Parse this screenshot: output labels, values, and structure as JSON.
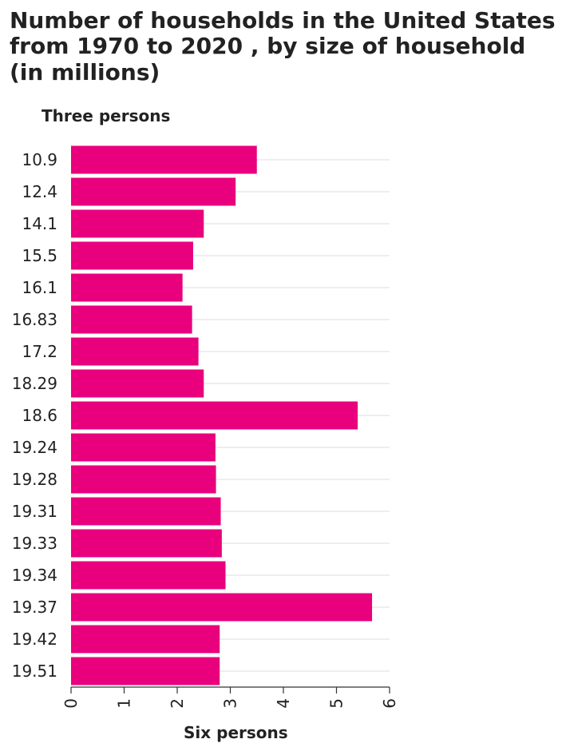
{
  "chart_data": {
    "type": "bar",
    "orientation": "horizontal",
    "title": "Number of households in the United States from 1970 to 2020 , by size of household (in millions)",
    "ylabel": "Three persons",
    "xlabel": "Six persons",
    "categories": [
      "10.9",
      "12.4",
      "14.1",
      "15.5",
      "16.1",
      "16.83",
      "17.2",
      "18.29",
      "18.6",
      "19.24",
      "19.28",
      "19.31",
      "19.33",
      "19.34",
      "19.37",
      "19.42",
      "19.51"
    ],
    "values": [
      3.5,
      3.1,
      2.5,
      2.3,
      2.1,
      2.28,
      2.4,
      2.5,
      5.4,
      2.72,
      2.73,
      2.82,
      2.84,
      2.91,
      5.67,
      2.8,
      2.8
    ],
    "xlim": [
      0,
      6
    ],
    "xticks": [
      0,
      1,
      2,
      3,
      4,
      5,
      6
    ],
    "grid": true,
    "bar_color": "#e8007d",
    "grid_color": "#dddddd"
  }
}
